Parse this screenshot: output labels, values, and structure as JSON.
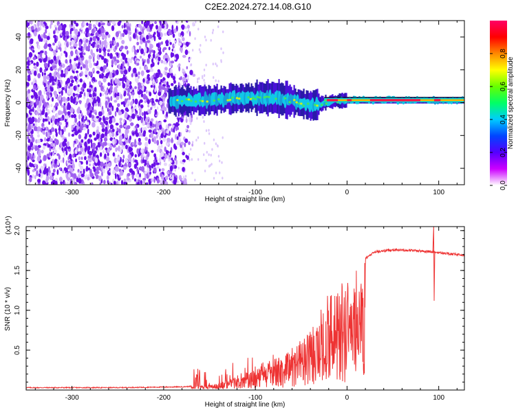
{
  "title": "C2E2.2024.272.14.08.G10",
  "chart_data": [
    {
      "type": "heatmap",
      "name": "spectrogram",
      "xlabel": "Height of straight line (km)",
      "ylabel": "Frequency (Hz)",
      "xlim": [
        -350,
        128
      ],
      "ylim": [
        -50,
        50
      ],
      "xticks": [
        "-300",
        "-200",
        "-100",
        "0",
        "100"
      ],
      "xtick_values": [
        -300,
        -200,
        -100,
        0,
        100
      ],
      "yticks": [
        "-40",
        "-20",
        "0",
        "20",
        "40"
      ],
      "ytick_values": [
        -40,
        -20,
        0,
        20,
        40
      ],
      "colorbar": {
        "label": "Normalized spectral amplitude",
        "range": [
          0,
          1
        ],
        "ticks": [
          "0.0",
          "0.2",
          "0.4",
          "0.6",
          "0.8"
        ],
        "tick_values": [
          0.0,
          0.2,
          0.4,
          0.6,
          0.8
        ],
        "colors": [
          "#ffffff",
          "#cc00ff",
          "#5500ff",
          "#0044ff",
          "#00ccff",
          "#00ff66",
          "#66ff00",
          "#ffff00",
          "#ff8800",
          "#ff0000",
          "#ff0066"
        ]
      },
      "signal_band": {
        "onset_x": -195,
        "center_freq": [
          {
            "x": -195,
            "f": 1
          },
          {
            "x": -150,
            "f": 1.5
          },
          {
            "x": -110,
            "f": 3
          },
          {
            "x": -80,
            "f": 3
          },
          {
            "x": -60,
            "f": 1
          },
          {
            "x": -40,
            "f": -2
          },
          {
            "x": -20,
            "f": 0.5
          },
          {
            "x": 0,
            "f": 1.5
          },
          {
            "x": 50,
            "f": 1.5
          },
          {
            "x": 128,
            "f": 1.5
          }
        ]
      }
    },
    {
      "type": "line",
      "name": "snr",
      "xlabel": "Height of straight line (km)",
      "ylabel": "SNR (10 * v/v)",
      "multiplier": "(x10⁴)",
      "xlim": [
        -350,
        128
      ],
      "ylim": [
        0,
        2.05
      ],
      "xticks": [
        "-300",
        "-200",
        "-100",
        "0",
        "100"
      ],
      "xtick_values": [
        -300,
        -200,
        -100,
        0,
        100
      ],
      "yticks": [
        "0.5",
        "1.0",
        "1.5",
        "2.0"
      ],
      "ytick_values": [
        0.5,
        1.0,
        1.5,
        2.0
      ],
      "line_color": "#ee3333",
      "envelope": [
        {
          "x": -350,
          "y": 0.03
        },
        {
          "x": -250,
          "y": 0.03
        },
        {
          "x": -180,
          "y": 0.04
        },
        {
          "x": -150,
          "y": 0.06
        },
        {
          "x": -130,
          "y": 0.12
        },
        {
          "x": -110,
          "y": 0.22
        },
        {
          "x": -90,
          "y": 0.32
        },
        {
          "x": -70,
          "y": 0.45
        },
        {
          "x": -50,
          "y": 0.62
        },
        {
          "x": -30,
          "y": 0.9
        },
        {
          "x": -20,
          "y": 1.1
        },
        {
          "x": -10,
          "y": 1.25
        },
        {
          "x": 0,
          "y": 1.35
        },
        {
          "x": 10,
          "y": 1.5
        },
        {
          "x": 20,
          "y": 1.65
        },
        {
          "x": 30,
          "y": 1.73
        },
        {
          "x": 50,
          "y": 1.76
        },
        {
          "x": 75,
          "y": 1.75
        },
        {
          "x": 95,
          "y": 1.73
        },
        {
          "x": 110,
          "y": 1.71
        },
        {
          "x": 128,
          "y": 1.69
        }
      ],
      "spike": {
        "x": 95,
        "y_max": 2.05,
        "y_min": 1.12
      }
    }
  ]
}
